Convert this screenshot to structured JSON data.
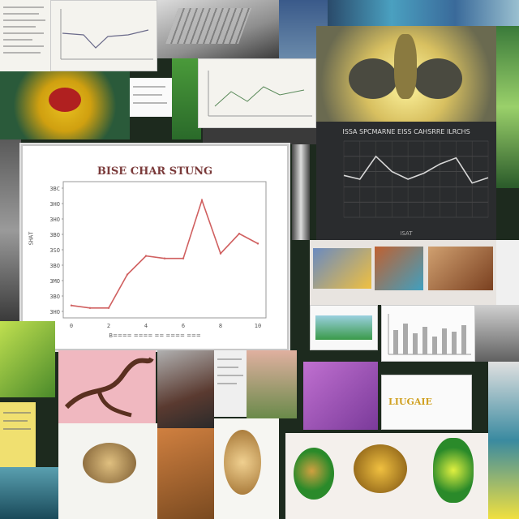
{
  "collage": {
    "description_tiles": 24
  },
  "main_chart": {
    "title": "BISE CHAR STUNG",
    "xlabel": "B==== ==== == ==== ===",
    "ylabel": "SHAT",
    "yticks": [
      "3BC",
      "3HO",
      "3HO",
      "3BO",
      "3SO",
      "3BO",
      "3MO",
      "3BO",
      "3HO"
    ],
    "xticks": [
      "0",
      "2",
      "4",
      "6",
      "8",
      "10"
    ]
  },
  "dark_chart": {
    "title": "ISSA SPCMARNE EISS CAHSRRE ILRCHS",
    "subtitle": "ISAT"
  },
  "gold_label": "LIUGAIE",
  "chart_data": [
    {
      "type": "line",
      "title": "BISE CHAR STUNG",
      "xlabel": "",
      "ylabel": "SHAT",
      "x": [
        0,
        1,
        2,
        3,
        4,
        5,
        6,
        7,
        8,
        9,
        10
      ],
      "values": [
        10,
        8,
        8,
        35,
        50,
        48,
        48,
        95,
        52,
        68,
        60
      ],
      "ylim": [
        0,
        110
      ],
      "grid": false
    },
    {
      "type": "line",
      "title": "ISSA SPCMARNE EISS CAHSRRE ILRCHS",
      "x": [
        0,
        1,
        2,
        3,
        4,
        5,
        6,
        7,
        8,
        9
      ],
      "values": [
        55,
        50,
        80,
        60,
        50,
        58,
        70,
        78,
        45,
        52
      ],
      "ylim": [
        0,
        100
      ],
      "grid": true
    }
  ],
  "colors": {
    "chart_line": "#d06060",
    "dark_line": "#d8d8d8",
    "accent_green": "#3a9a2a",
    "accent_yellow": "#f0d020"
  }
}
